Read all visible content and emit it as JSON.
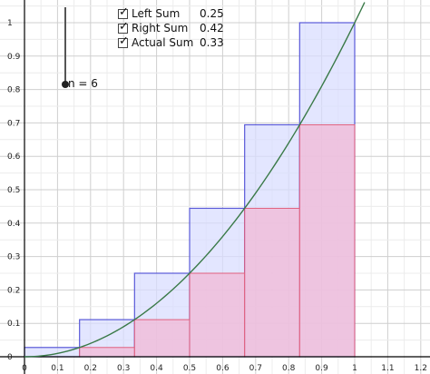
{
  "checkboxes": [
    {
      "label": "Left Sum",
      "value": "0.25",
      "checked": true
    },
    {
      "label": "Right Sum",
      "value": "0.42",
      "checked": true
    },
    {
      "label": "Actual Sum",
      "value": "0.33",
      "checked": true
    }
  ],
  "slider": {
    "label": "n = 6",
    "name": "n",
    "value": 6
  },
  "colors": {
    "left_fill": "#f2b8d6",
    "left_stroke": "#e0607e",
    "right_fill": "#d8dcff",
    "right_stroke": "#5a5ad8",
    "curve": "#3a7a48",
    "grid": "#d8d8d8",
    "axis": "#000000"
  },
  "chart_data": {
    "type": "area",
    "function": "x^2",
    "n": 6,
    "interval": [
      0,
      1
    ],
    "x_ticks": [
      "0",
      "0.1",
      "0.2",
      "0.3",
      "0.4",
      "0.5",
      "0.6",
      "0.7",
      "0.8",
      "0.9",
      "1",
      "1.1",
      "1.2"
    ],
    "y_ticks": [
      "0",
      "0.1",
      "0.2",
      "0.3",
      "0.4",
      "0.5",
      "0.6",
      "0.7",
      "0.8",
      "0.9",
      "1"
    ],
    "xlim": [
      -0.05,
      1.23
    ],
    "ylim": [
      -0.05,
      1.06
    ],
    "series": [
      {
        "name": "Left Sum",
        "x_left": [
          0,
          0.1667,
          0.3333,
          0.5,
          0.6667,
          0.8333
        ],
        "width": 0.1667,
        "heights": [
          0,
          0.0278,
          0.1111,
          0.25,
          0.4444,
          0.6944
        ]
      },
      {
        "name": "Right Sum",
        "x_left": [
          0,
          0.1667,
          0.3333,
          0.5,
          0.6667,
          0.8333
        ],
        "width": 0.1667,
        "heights": [
          0.0278,
          0.1111,
          0.25,
          0.4444,
          0.6944,
          1
        ]
      }
    ],
    "curve": {
      "x": [
        0,
        0.1,
        0.2,
        0.3,
        0.4,
        0.5,
        0.6,
        0.7,
        0.8,
        0.9,
        1,
        1.03
      ],
      "y": [
        0,
        0.01,
        0.04,
        0.09,
        0.16,
        0.25,
        0.36,
        0.49,
        0.64,
        0.81,
        1,
        1.061
      ]
    }
  }
}
